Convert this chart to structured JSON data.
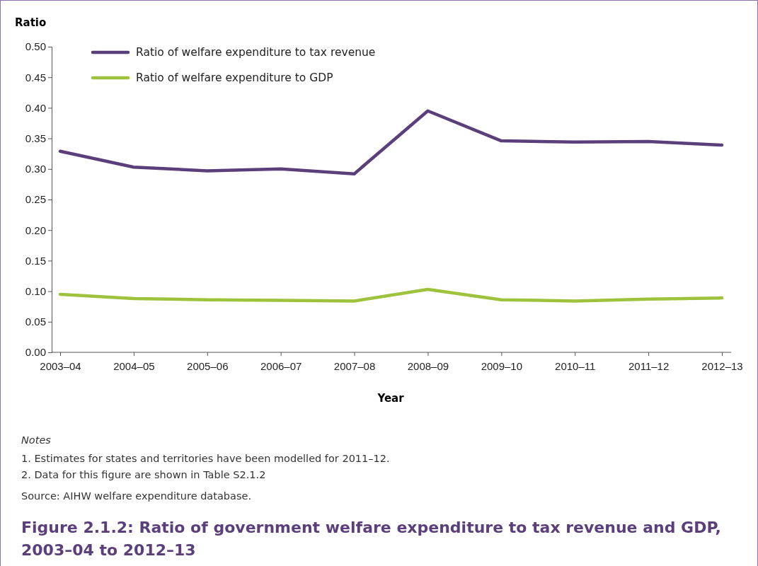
{
  "chart_data": {
    "type": "line",
    "title": "Figure 2.1.2: Ratio of government welfare expenditure to tax revenue and GDP, 2003–04 to 2012–13",
    "xlabel": "Year",
    "ylabel": "Ratio",
    "categories": [
      "2003–04",
      "2004–05",
      "2005–06",
      "2006–07",
      "2007–08",
      "2008–09",
      "2009–10",
      "2010–11",
      "2011–12",
      "2012–13"
    ],
    "series": [
      {
        "name": "Ratio of welfare expenditure to tax revenue",
        "color": "#5b3f7a",
        "values": [
          0.329,
          0.303,
          0.297,
          0.3,
          0.292,
          0.395,
          0.346,
          0.344,
          0.345,
          0.339
        ]
      },
      {
        "name": "Ratio of welfare expenditure to GDP",
        "color": "#9dc23b",
        "values": [
          0.095,
          0.088,
          0.086,
          0.085,
          0.084,
          0.103,
          0.086,
          0.084,
          0.087,
          0.089
        ]
      }
    ],
    "ylim": [
      0,
      0.5
    ],
    "yticks": [
      {
        "value": 0,
        "label": "0.00"
      },
      {
        "value": 0.05,
        "label": "0.05"
      },
      {
        "value": 0.1,
        "label": "0.10"
      },
      {
        "value": 0.15,
        "label": "0.15"
      },
      {
        "value": 0.2,
        "label": "0.20"
      },
      {
        "value": 0.25,
        "label": "0.25"
      },
      {
        "value": 0.3,
        "label": "0.30"
      },
      {
        "value": 0.35,
        "label": "0.35"
      },
      {
        "value": 0.4,
        "label": "0.40"
      },
      {
        "value": 0.45,
        "label": "0.45"
      },
      {
        "value": 0.5,
        "label": "0.50"
      }
    ],
    "legend": "top left",
    "marker": "none",
    "line_style": "solid",
    "annotations": [
      "Notes",
      "1.  Estimates for states and territories have been modelled for 2011–12.",
      "2.  Data for this figure are shown in Table S2.1.2",
      "Source: AIHW welfare expenditure database."
    ]
  }
}
